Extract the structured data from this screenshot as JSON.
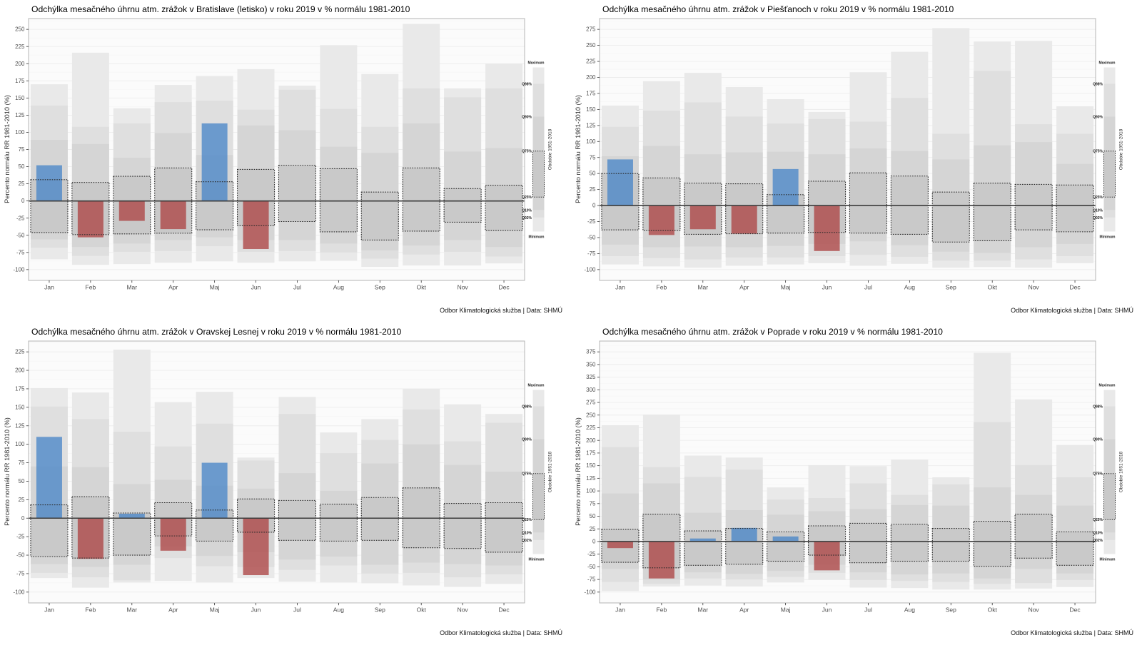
{
  "shared": {
    "ylabel": "Percento normálu RR 1981-2010 (%)",
    "footer": "Odbor Klimatologická služba | Data: SHMÚ",
    "months": [
      "Jan",
      "Feb",
      "Mar",
      "Apr",
      "Maj",
      "Jun",
      "Jul",
      "Aug",
      "Sep",
      "Okt",
      "Nov",
      "Dec"
    ],
    "legend": {
      "title": "Obdobie 1951-2018",
      "top_label": "Maximum",
      "bottom_label": "Minimum",
      "quantile_labels": [
        "Q98%",
        "Q90%",
        "Q75%",
        "Q25%",
        "Q10%",
        "Q02%"
      ]
    },
    "colors": {
      "above_2019": "#4a86c8",
      "below_2019": "#ad4545",
      "band_outer": "#e9e9e9",
      "band_mid": "#dfdfdf",
      "band_inner": "#d5d5d5",
      "band_iqr": "#c9c9c9",
      "dashed_border": "#2a2a2a",
      "zero_line": "#3c3c3c",
      "panel_bg": "#fbfbfb",
      "panel_border": "#b5b5b5",
      "grid_major": "#ececec",
      "grid_minor": "#f6f6f6"
    }
  },
  "chart_data": [
    {
      "type": "bar",
      "station": "Bratislava (letisko)",
      "title": "Odchýlka mesačného úhrnu atm. zrážok v Bratislave (letisko) v roku 2019 v % normálu 1981-2010",
      "ylabel": "Percento normálu RR 1981-2010 (%)",
      "ylim": [
        -100,
        250
      ],
      "yticks": [
        -100,
        -75,
        -50,
        -25,
        0,
        25,
        50,
        75,
        100,
        125,
        150,
        175,
        200,
        225,
        250
      ],
      "categories": [
        "Jan",
        "Feb",
        "Mar",
        "Apr",
        "Maj",
        "Jun",
        "Jul",
        "Aug",
        "Sep",
        "Okt",
        "Nov",
        "Dec"
      ],
      "values_2019": [
        52,
        -53,
        -29,
        -41,
        113,
        -70,
        null,
        null,
        null,
        null,
        null,
        null
      ],
      "bands": {
        "max": [
          170,
          216,
          135,
          169,
          182,
          192,
          168,
          227,
          185,
          258,
          164,
          200
        ],
        "q98": [
          139,
          108,
          113,
          144,
          146,
          133,
          162,
          134,
          108,
          164,
          151,
          164
        ],
        "q90": [
          89,
          83,
          63,
          99,
          67,
          110,
          103,
          79,
          70,
          113,
          72,
          77
        ],
        "q75": [
          31,
          27,
          36,
          48,
          28,
          46,
          52,
          47,
          13,
          48,
          18,
          23
        ],
        "q25": [
          -46,
          -49,
          -48,
          -47,
          -42,
          -36,
          -30,
          -45,
          -57,
          -44,
          -31,
          -43
        ],
        "q10": [
          -56,
          -67,
          -62,
          -57,
          -53,
          -57,
          -57,
          -62,
          -72,
          -65,
          -57,
          -67
        ],
        "q02": [
          -68,
          -80,
          -74,
          -73,
          -66,
          -74,
          -73,
          -75,
          -84,
          -78,
          -74,
          -81
        ],
        "min": [
          -85,
          -93,
          -92,
          -90,
          -88,
          -90,
          -88,
          -87,
          -96,
          -94,
          -94,
          -91
        ]
      }
    },
    {
      "type": "bar",
      "station": "Piešťany",
      "title": "Odchýlka mesačného úhrnu atm. zrážok v Piešťanoch v roku 2019 v % normálu 1981-2010",
      "ylabel": "Percento normálu RR 1981-2010 (%)",
      "ylim": [
        -100,
        275
      ],
      "yticks": [
        -100,
        -75,
        -50,
        -25,
        0,
        25,
        50,
        75,
        100,
        125,
        150,
        175,
        200,
        225,
        250,
        275
      ],
      "categories": [
        "Jan",
        "Feb",
        "Mar",
        "Apr",
        "Maj",
        "Jun",
        "Jul",
        "Aug",
        "Sep",
        "Okt",
        "Nov",
        "Dec"
      ],
      "values_2019": [
        72,
        -46,
        -37,
        -44,
        57,
        -71,
        null,
        null,
        null,
        null,
        null,
        null
      ],
      "bands": {
        "max": [
          156,
          194,
          207,
          185,
          166,
          146,
          208,
          240,
          277,
          256,
          257,
          155
        ],
        "q98": [
          123,
          148,
          161,
          139,
          128,
          135,
          131,
          168,
          112,
          210,
          127,
          112
        ],
        "q90": [
          77,
          93,
          80,
          83,
          84,
          80,
          89,
          85,
          72,
          94,
          99,
          65
        ],
        "q75": [
          50,
          43,
          35,
          34,
          17,
          38,
          51,
          46,
          21,
          35,
          33,
          32
        ],
        "q25": [
          -38,
          -39,
          -45,
          -44,
          -43,
          -42,
          -43,
          -45,
          -57,
          -55,
          -38,
          -41
        ],
        "q10": [
          -61,
          -65,
          -64,
          -65,
          -63,
          -60,
          -56,
          -62,
          -72,
          -74,
          -65,
          -60
        ],
        "q02": [
          -79,
          -82,
          -84,
          -81,
          -81,
          -79,
          -77,
          -80,
          -86,
          -86,
          -84,
          -79
        ],
        "min": [
          -92,
          -95,
          -97,
          -94,
          -92,
          -90,
          -94,
          -91,
          -97,
          -96,
          -97,
          -90
        ]
      }
    },
    {
      "type": "bar",
      "station": "Oravská Lesná",
      "title": "Odchýlka mesačného úhrnu atm. zrážok v Oravskej Lesnej v roku 2019 v % normálu 1981-2010",
      "ylabel": "Percento normálu RR 1981-2010 (%)",
      "ylim": [
        -100,
        225
      ],
      "yticks": [
        -100,
        -75,
        -50,
        -25,
        0,
        25,
        50,
        75,
        100,
        125,
        150,
        175,
        200,
        225
      ],
      "categories": [
        "Jan",
        "Feb",
        "Mar",
        "Apr",
        "Maj",
        "Jun",
        "Jul",
        "Aug",
        "Sep",
        "Okt",
        "Nov",
        "Dec"
      ],
      "values_2019": [
        110,
        -55,
        6,
        -44,
        75,
        -77,
        null,
        null,
        null,
        null,
        null,
        null
      ],
      "bands": {
        "max": [
          176,
          170,
          228,
          157,
          171,
          82,
          164,
          116,
          134,
          175,
          154,
          141
        ],
        "q98": [
          151,
          134,
          117,
          97,
          128,
          78,
          141,
          88,
          106,
          147,
          104,
          129
        ],
        "q90": [
          70,
          69,
          46,
          52,
          44,
          40,
          61,
          37,
          74,
          100,
          72,
          63
        ],
        "q75": [
          18,
          29,
          7,
          21,
          11,
          26,
          24,
          19,
          28,
          41,
          20,
          21
        ],
        "q25": [
          -52,
          -54,
          -50,
          -24,
          -31,
          -19,
          -30,
          -31,
          -30,
          -40,
          -41,
          -46
        ],
        "q10": [
          -62,
          -66,
          -63,
          -38,
          -51,
          -46,
          -56,
          -52,
          -63,
          -60,
          -62,
          -64
        ],
        "q02": [
          -74,
          -80,
          -84,
          -54,
          -65,
          -66,
          -70,
          -64,
          -75,
          -74,
          -80,
          -76
        ],
        "min": [
          -81,
          -94,
          -87,
          -85,
          -87,
          -81,
          -86,
          -87,
          -88,
          -91,
          -93,
          -89
        ]
      }
    },
    {
      "type": "bar",
      "station": "Poprad",
      "title": "Odchýlka mesačného úhrnu atm. zrážok v Poprade v roku 2019 v % normálu 1981-2010",
      "ylabel": "Percento normálu RR 1981-2010 (%)",
      "ylim": [
        -100,
        375
      ],
      "yticks": [
        -100,
        -75,
        -50,
        -25,
        0,
        25,
        50,
        75,
        100,
        125,
        150,
        175,
        200,
        225,
        250,
        275,
        300,
        325,
        350,
        375
      ],
      "categories": [
        "Jan",
        "Feb",
        "Mar",
        "Apr",
        "Maj",
        "Jun",
        "Jul",
        "Aug",
        "Sep",
        "Okt",
        "Nov",
        "Dec"
      ],
      "values_2019": [
        -13,
        -73,
        6,
        27,
        10,
        -57,
        null,
        null,
        null,
        null,
        null,
        null
      ],
      "bands": {
        "max": [
          230,
          251,
          170,
          166,
          107,
          151,
          149,
          162,
          127,
          373,
          281,
          191
        ],
        "q98": [
          187,
          147,
          128,
          142,
          83,
          86,
          115,
          92,
          113,
          236,
          151,
          127
        ],
        "q90": [
          95,
          115,
          57,
          62,
          53,
          60,
          64,
          72,
          71,
          107,
          92,
          71
        ],
        "q75": [
          24,
          54,
          21,
          26,
          19,
          31,
          36,
          34,
          26,
          40,
          54,
          19
        ],
        "q25": [
          -41,
          -52,
          -47,
          -45,
          -39,
          -27,
          -42,
          -39,
          -39,
          -49,
          -33,
          -47
        ],
        "q10": [
          -54,
          -75,
          -61,
          -64,
          -58,
          -46,
          -61,
          -65,
          -63,
          -73,
          -54,
          -63
        ],
        "q02": [
          -80,
          -84,
          -73,
          -75,
          -70,
          -62,
          -76,
          -78,
          -80,
          -84,
          -82,
          -76
        ],
        "min": [
          -98,
          -89,
          -87,
          -89,
          -81,
          -76,
          -91,
          -92,
          -95,
          -95,
          -93,
          -90
        ]
      }
    }
  ]
}
